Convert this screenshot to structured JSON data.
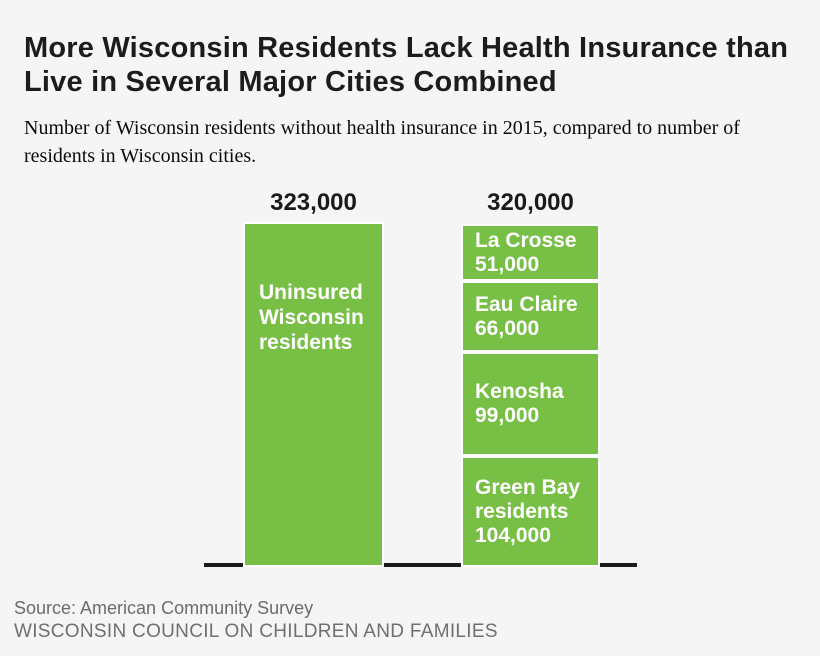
{
  "header": {
    "title_line1": "More Wisconsin Residents Lack Health Insurance than",
    "title_line2": "Live in Several Major Cities Combined",
    "subtitle_line1": "Number of Wisconsin residents without health insurance in 2015, compared to number of",
    "subtitle_line2": "residents in Wisconsin cities."
  },
  "footer": {
    "source": "Source: American Community Survey",
    "organization": "WISCONSIN COUNCIL ON CHILDREN AND FAMILIES"
  },
  "colors": {
    "background": "#f5f5f5",
    "bar_green": "#77bf45",
    "segment_border": "#ffffff",
    "axis_line": "#1b1b1b",
    "title_text": "#1c1c1c",
    "footer_gray": "#6b6b6b",
    "bar_label_text": "#ffffff"
  },
  "chart_data": {
    "type": "bar",
    "variant": "stacked-comparison",
    "title": "More Wisconsin Residents Lack Health Insurance than Live in Several Major Cities Combined",
    "subtitle": "Number of Wisconsin residents without health insurance in 2015, compared to number of residents in Wisconsin cities.",
    "unit": "residents",
    "legend": "none",
    "grid": false,
    "axis_baseline": true,
    "bars": [
      {
        "total_label": "323,000",
        "total_value": 323000,
        "segments": [
          {
            "name": "Uninsured Wisconsin residents",
            "value": 323000,
            "value_label": ""
          }
        ]
      },
      {
        "total_label": "320,000",
        "total_value": 320000,
        "segments": [
          {
            "name": "La Crosse",
            "value": 51000,
            "value_label": "51,000"
          },
          {
            "name": "Eau Claire",
            "value": 66000,
            "value_label": "66,000"
          },
          {
            "name": "Kenosha",
            "value": 99000,
            "value_label": "99,000"
          },
          {
            "name": "Green Bay residents",
            "value": 104000,
            "value_label": "104,000"
          }
        ]
      }
    ]
  }
}
